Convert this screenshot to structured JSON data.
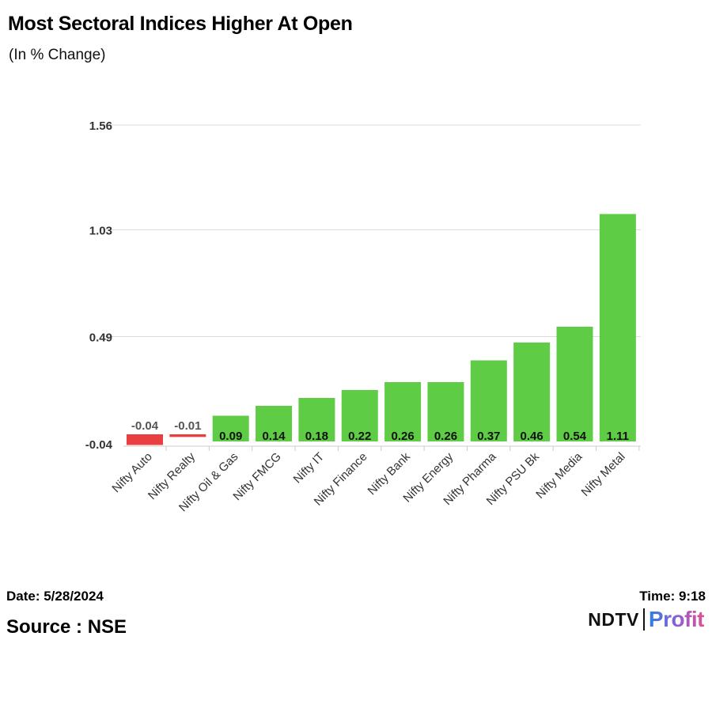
{
  "header": {
    "title": "Most Sectoral Indices Higher At Open",
    "subtitle": "(In % Change)"
  },
  "footer": {
    "date": "Date: 5/28/2024",
    "time": "Time: 9:18",
    "source": "Source : NSE",
    "logo": {
      "ndtv": "NDTV",
      "profit": "Profit"
    }
  },
  "colors": {
    "positive": "#5fcc46",
    "negative": "#e84040",
    "grid": "#dcdcdc",
    "profit_gradient": [
      "#2f7fe0",
      "#8a5fd6",
      "#e0508f"
    ]
  },
  "chart_data": {
    "type": "bar",
    "title": "Most Sectoral Indices Higher At Open",
    "subtitle": "(In % Change)",
    "xlabel": "",
    "ylabel": "",
    "categories": [
      "Nifty Auto",
      "Nifty Realty",
      "Nifty Oil & Gas",
      "Nifty FMCG",
      "Nifty IT",
      "Nifty Finance",
      "Nifty Bank",
      "Nifty Energy",
      "Nifty Pharma",
      "Nifty PSU Bk",
      "Nifty Media",
      "Nifty Metal"
    ],
    "values": [
      -0.04,
      -0.01,
      0.09,
      0.14,
      0.18,
      0.22,
      0.26,
      0.26,
      0.37,
      0.46,
      0.54,
      1.11
    ],
    "value_labels": [
      "-0.04",
      "-0.01",
      "0.09",
      "0.14",
      "0.18",
      "0.22",
      "0.26",
      "0.26",
      "0.37",
      "0.46",
      "0.54",
      "1.11"
    ],
    "yticks": [
      -0.04,
      0.49,
      1.03,
      1.56
    ],
    "ytick_labels": [
      "-0.04",
      "0.49",
      "1.03",
      "1.56"
    ],
    "ylim": [
      -0.04,
      1.56
    ],
    "grid": true,
    "legend": "none"
  }
}
